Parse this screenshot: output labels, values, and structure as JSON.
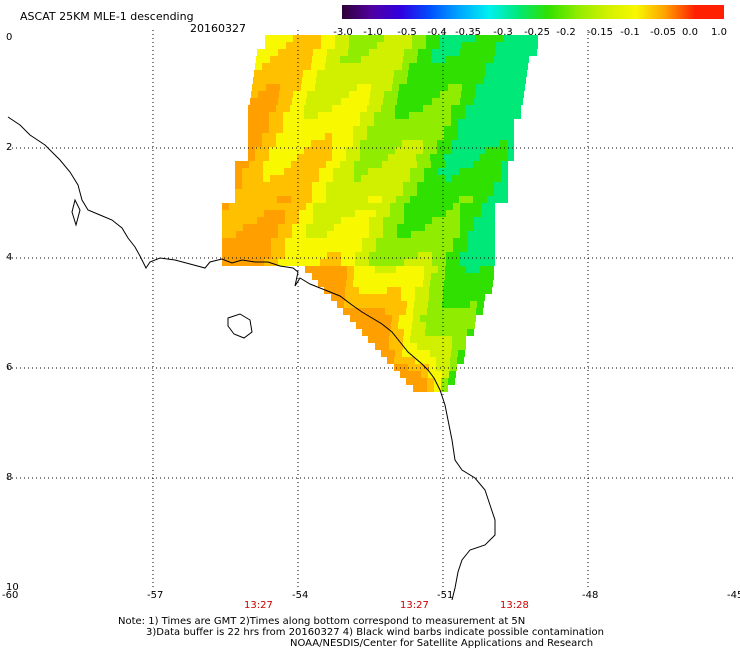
{
  "header": {
    "product_title": "ASCAT 25KM MLE-1 descending",
    "date": "20160327"
  },
  "colorbar": {
    "tick_labels": [
      "-3.0",
      "-1.0",
      "-0.5",
      "-0.4",
      "-0.35",
      "-0.3",
      "-0.25",
      "-0.2",
      "-0.15",
      "-0.1",
      "-0.05",
      "0.0",
      "1.0"
    ],
    "colors": [
      "#300038",
      "#5000a0",
      "#3000e0",
      "#0050ff",
      "#00a8ff",
      "#00f0f0",
      "#00e878",
      "#30e000",
      "#90ec00",
      "#d0f000",
      "#f8f800",
      "#ffa000",
      "#ff2000"
    ]
  },
  "axes": {
    "x_tick_labels": [
      "-60",
      "-57",
      "-54",
      "-51",
      "-48",
      "-45"
    ],
    "y_tick_labels": [
      "10",
      "8",
      "6",
      "4",
      "2",
      "0"
    ]
  },
  "pass_times": [
    "13:27",
    "13:27",
    "13:28"
  ],
  "footer": {
    "line1": "Note: 1) Times are GMT 2)Times along bottom correspond to measurement at 5N",
    "line2": "3)Data buffer is 22 hrs from 20160327 4) Black wind barbs indicate possible contamination",
    "line3": "NOAA/NESDIS/Center for Satellite Applications and Research"
  }
}
